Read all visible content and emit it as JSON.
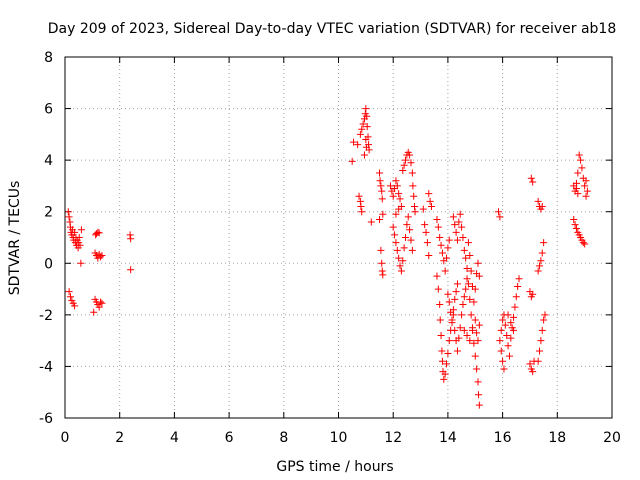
{
  "chart_data": {
    "type": "scatter",
    "title": "Day 209 of 2023, Sidereal Day-to-day VTEC variation (SDTVAR) for receiver ab18",
    "xlabel": "GPS time / hours",
    "ylabel": "SDTVAR / TECUs",
    "xlim": [
      0,
      20
    ],
    "ylim": [
      -6,
      8
    ],
    "xticks": [
      0,
      2,
      4,
      6,
      8,
      10,
      12,
      14,
      16,
      18,
      20
    ],
    "yticks": [
      -6,
      -4,
      -2,
      0,
      2,
      4,
      6,
      8
    ],
    "grid": true,
    "marker": "+",
    "color": "#ff0000",
    "series": [
      {
        "name": "SDTVAR",
        "points": [
          [
            0.12,
            2.0
          ],
          [
            0.15,
            1.8
          ],
          [
            0.18,
            1.6
          ],
          [
            0.2,
            1.4
          ],
          [
            0.22,
            1.2
          ],
          [
            0.25,
            1.1
          ],
          [
            0.27,
            1.3
          ],
          [
            0.3,
            1.0
          ],
          [
            0.32,
            0.9
          ],
          [
            0.35,
            1.2
          ],
          [
            0.38,
            0.8
          ],
          [
            0.4,
            1.0
          ],
          [
            0.42,
            0.7
          ],
          [
            0.45,
            0.9
          ],
          [
            0.48,
            0.6
          ],
          [
            0.5,
            0.8
          ],
          [
            0.52,
            1.0
          ],
          [
            0.55,
            0.7
          ],
          [
            0.58,
            0.0
          ],
          [
            0.6,
            1.3
          ],
          [
            0.15,
            -1.1
          ],
          [
            0.2,
            -1.3
          ],
          [
            0.25,
            -1.45
          ],
          [
            0.3,
            -1.55
          ],
          [
            0.35,
            -1.65
          ],
          [
            1.12,
            1.1
          ],
          [
            1.15,
            1.15
          ],
          [
            1.2,
            1.2
          ],
          [
            1.25,
            1.18
          ],
          [
            1.1,
            0.4
          ],
          [
            1.15,
            0.3
          ],
          [
            1.2,
            0.2
          ],
          [
            1.25,
            0.35
          ],
          [
            1.3,
            0.25
          ],
          [
            1.35,
            0.3
          ],
          [
            1.1,
            -1.4
          ],
          [
            1.15,
            -1.5
          ],
          [
            1.2,
            -1.6
          ],
          [
            1.25,
            -1.7
          ],
          [
            1.3,
            -1.5
          ],
          [
            1.35,
            -1.55
          ],
          [
            1.05,
            -1.9
          ],
          [
            2.38,
            1.1
          ],
          [
            2.4,
            0.95
          ],
          [
            2.4,
            -0.25
          ],
          [
            10.55,
            4.7
          ],
          [
            10.5,
            3.95
          ],
          [
            10.7,
            4.6
          ],
          [
            10.75,
            2.6
          ],
          [
            10.8,
            2.4
          ],
          [
            10.82,
            2.2
          ],
          [
            10.85,
            2.0
          ],
          [
            10.8,
            5.0
          ],
          [
            10.85,
            5.2
          ],
          [
            10.9,
            5.4
          ],
          [
            10.95,
            5.6
          ],
          [
            10.98,
            5.8
          ],
          [
            11.0,
            6.0
          ],
          [
            11.03,
            5.7
          ],
          [
            11.05,
            5.3
          ],
          [
            11.08,
            4.9
          ],
          [
            11.1,
            4.6
          ],
          [
            11.12,
            4.4
          ],
          [
            11.0,
            4.8
          ],
          [
            11.02,
            4.5
          ],
          [
            10.95,
            4.2
          ],
          [
            11.2,
            1.6
          ],
          [
            11.5,
            3.5
          ],
          [
            11.52,
            3.2
          ],
          [
            11.55,
            3.0
          ],
          [
            11.58,
            2.8
          ],
          [
            11.6,
            2.5
          ],
          [
            11.62,
            1.9
          ],
          [
            11.5,
            1.7
          ],
          [
            11.55,
            0.5
          ],
          [
            11.58,
            0.0
          ],
          [
            11.6,
            -0.3
          ],
          [
            11.62,
            -0.45
          ],
          [
            11.9,
            3.0
          ],
          [
            11.95,
            2.8
          ],
          [
            12.0,
            2.6
          ],
          [
            12.05,
            2.9
          ],
          [
            12.1,
            3.2
          ],
          [
            12.15,
            3.0
          ],
          [
            12.2,
            2.7
          ],
          [
            12.25,
            2.5
          ],
          [
            12.3,
            2.2
          ],
          [
            12.35,
            3.6
          ],
          [
            12.4,
            3.8
          ],
          [
            12.45,
            4.0
          ],
          [
            12.5,
            4.2
          ],
          [
            12.55,
            4.3
          ],
          [
            12.6,
            4.2
          ],
          [
            12.65,
            3.9
          ],
          [
            12.7,
            3.5
          ],
          [
            12.72,
            3.0
          ],
          [
            12.75,
            2.6
          ],
          [
            12.78,
            2.2
          ],
          [
            12.8,
            2.0
          ],
          [
            12.0,
            1.4
          ],
          [
            12.05,
            1.1
          ],
          [
            12.1,
            0.8
          ],
          [
            12.15,
            0.5
          ],
          [
            12.2,
            0.2
          ],
          [
            12.25,
            -0.1
          ],
          [
            12.3,
            -0.3
          ],
          [
            12.35,
            0.1
          ],
          [
            12.4,
            0.6
          ],
          [
            12.45,
            1.0
          ],
          [
            12.5,
            1.5
          ],
          [
            12.55,
            1.8
          ],
          [
            12.6,
            1.3
          ],
          [
            12.65,
            0.9
          ],
          [
            12.7,
            0.5
          ],
          [
            12.1,
            1.9
          ],
          [
            12.2,
            2.1
          ],
          [
            13.1,
            2.1
          ],
          [
            13.15,
            1.5
          ],
          [
            13.2,
            1.2
          ],
          [
            13.25,
            0.8
          ],
          [
            13.3,
            0.3
          ],
          [
            13.3,
            2.7
          ],
          [
            13.35,
            2.4
          ],
          [
            13.4,
            2.2
          ],
          [
            13.6,
            1.7
          ],
          [
            13.65,
            1.4
          ],
          [
            13.7,
            1.0
          ],
          [
            13.75,
            0.7
          ],
          [
            13.8,
            0.4
          ],
          [
            13.85,
            0.1
          ],
          [
            13.9,
            -0.3
          ],
          [
            13.95,
            0.2
          ],
          [
            14.0,
            0.6
          ],
          [
            14.05,
            0.9
          ],
          [
            13.6,
            -0.5
          ],
          [
            13.65,
            -1.0
          ],
          [
            13.7,
            -1.6
          ],
          [
            13.72,
            -2.2
          ],
          [
            13.75,
            -2.8
          ],
          [
            13.78,
            -3.4
          ],
          [
            13.8,
            -3.8
          ],
          [
            13.82,
            -4.2
          ],
          [
            13.85,
            -4.5
          ],
          [
            13.9,
            -4.3
          ],
          [
            13.95,
            -3.9
          ],
          [
            14.0,
            -3.5
          ],
          [
            14.05,
            -3.0
          ],
          [
            14.1,
            -2.6
          ],
          [
            14.15,
            -2.2
          ],
          [
            14.2,
            -1.8
          ],
          [
            14.25,
            -1.4
          ],
          [
            14.3,
            -1.1
          ],
          [
            14.35,
            -0.8
          ],
          [
            14.0,
            -1.2
          ],
          [
            14.05,
            -1.5
          ],
          [
            14.1,
            -1.9
          ],
          [
            14.15,
            -2.3
          ],
          [
            14.2,
            -2.0
          ],
          [
            14.25,
            -2.6
          ],
          [
            14.3,
            -3.0
          ],
          [
            14.35,
            -3.4
          ],
          [
            14.4,
            -2.9
          ],
          [
            14.45,
            -2.5
          ],
          [
            14.5,
            -2.0
          ],
          [
            14.55,
            -1.6
          ],
          [
            14.6,
            -1.3
          ],
          [
            14.65,
            -1.0
          ],
          [
            14.7,
            -0.6
          ],
          [
            14.2,
            1.8
          ],
          [
            14.25,
            1.5
          ],
          [
            14.3,
            1.2
          ],
          [
            14.35,
            0.9
          ],
          [
            14.4,
            1.6
          ],
          [
            14.45,
            1.9
          ],
          [
            14.5,
            1.4
          ],
          [
            14.55,
            1.0
          ],
          [
            14.6,
            0.5
          ],
          [
            14.65,
            0.2
          ],
          [
            14.7,
            -0.2
          ],
          [
            14.75,
            -0.8
          ],
          [
            14.8,
            -1.4
          ],
          [
            14.85,
            -2.0
          ],
          [
            14.9,
            -2.6
          ],
          [
            14.95,
            -3.1
          ],
          [
            15.0,
            -3.6
          ],
          [
            15.05,
            -4.1
          ],
          [
            15.1,
            -4.6
          ],
          [
            15.12,
            -5.1
          ],
          [
            15.15,
            -5.5
          ],
          [
            14.6,
            -2.6
          ],
          [
            14.7,
            -2.8
          ],
          [
            14.8,
            -3.0
          ],
          [
            14.9,
            -2.5
          ],
          [
            15.0,
            -2.2
          ],
          [
            15.05,
            -2.7
          ],
          [
            15.1,
            -3.0
          ],
          [
            15.15,
            -2.4
          ],
          [
            14.75,
            0.8
          ],
          [
            14.8,
            0.3
          ],
          [
            14.85,
            -0.3
          ],
          [
            14.9,
            -0.9
          ],
          [
            14.95,
            -1.5
          ],
          [
            15.0,
            -1.0
          ],
          [
            15.05,
            -0.4
          ],
          [
            15.1,
            0.0
          ],
          [
            15.15,
            -0.5
          ],
          [
            15.85,
            2.0
          ],
          [
            15.9,
            1.8
          ],
          [
            15.9,
            -3.0
          ],
          [
            15.95,
            -3.4
          ],
          [
            16.0,
            -3.8
          ],
          [
            16.05,
            -4.1
          ],
          [
            15.95,
            -2.6
          ],
          [
            16.0,
            -2.2
          ],
          [
            16.05,
            -2.0
          ],
          [
            16.1,
            -2.4
          ],
          [
            16.15,
            -2.8
          ],
          [
            16.2,
            -3.2
          ],
          [
            16.25,
            -3.6
          ],
          [
            16.3,
            -2.9
          ],
          [
            16.35,
            -2.5
          ],
          [
            16.4,
            -2.1
          ],
          [
            16.45,
            -1.7
          ],
          [
            16.5,
            -1.3
          ],
          [
            16.55,
            -0.9
          ],
          [
            16.6,
            -0.6
          ],
          [
            16.2,
            -2.0
          ],
          [
            16.3,
            -2.3
          ],
          [
            16.4,
            -2.6
          ],
          [
            17.05,
            3.3
          ],
          [
            17.1,
            3.15
          ],
          [
            17.0,
            -1.1
          ],
          [
            17.05,
            -1.3
          ],
          [
            17.1,
            -1.2
          ],
          [
            17.0,
            -3.9
          ],
          [
            17.05,
            -4.1
          ],
          [
            17.1,
            -4.2
          ],
          [
            17.15,
            -3.8
          ],
          [
            17.3,
            2.4
          ],
          [
            17.35,
            2.2
          ],
          [
            17.4,
            2.1
          ],
          [
            17.45,
            2.2
          ],
          [
            17.35,
            -0.1
          ],
          [
            17.4,
            0.1
          ],
          [
            17.45,
            0.4
          ],
          [
            17.5,
            0.8
          ],
          [
            17.3,
            -0.3
          ],
          [
            17.3,
            -3.8
          ],
          [
            17.35,
            -3.4
          ],
          [
            17.4,
            -3.0
          ],
          [
            17.45,
            -2.6
          ],
          [
            17.5,
            -2.2
          ],
          [
            17.55,
            -2.0
          ],
          [
            18.6,
            1.7
          ],
          [
            18.65,
            1.5
          ],
          [
            18.7,
            1.35
          ],
          [
            18.75,
            1.2
          ],
          [
            18.8,
            1.1
          ],
          [
            18.85,
            1.0
          ],
          [
            18.9,
            0.9
          ],
          [
            18.95,
            0.8
          ],
          [
            19.0,
            0.75
          ],
          [
            18.6,
            3.0
          ],
          [
            18.65,
            2.8
          ],
          [
            18.7,
            3.1
          ],
          [
            18.75,
            3.5
          ],
          [
            18.8,
            4.2
          ],
          [
            18.85,
            4.0
          ],
          [
            18.9,
            3.7
          ],
          [
            18.95,
            3.3
          ],
          [
            19.0,
            3.0
          ],
          [
            19.05,
            3.2
          ],
          [
            19.1,
            2.8
          ],
          [
            19.05,
            2.6
          ],
          [
            18.7,
            2.9
          ],
          [
            18.75,
            2.7
          ]
        ]
      }
    ]
  }
}
